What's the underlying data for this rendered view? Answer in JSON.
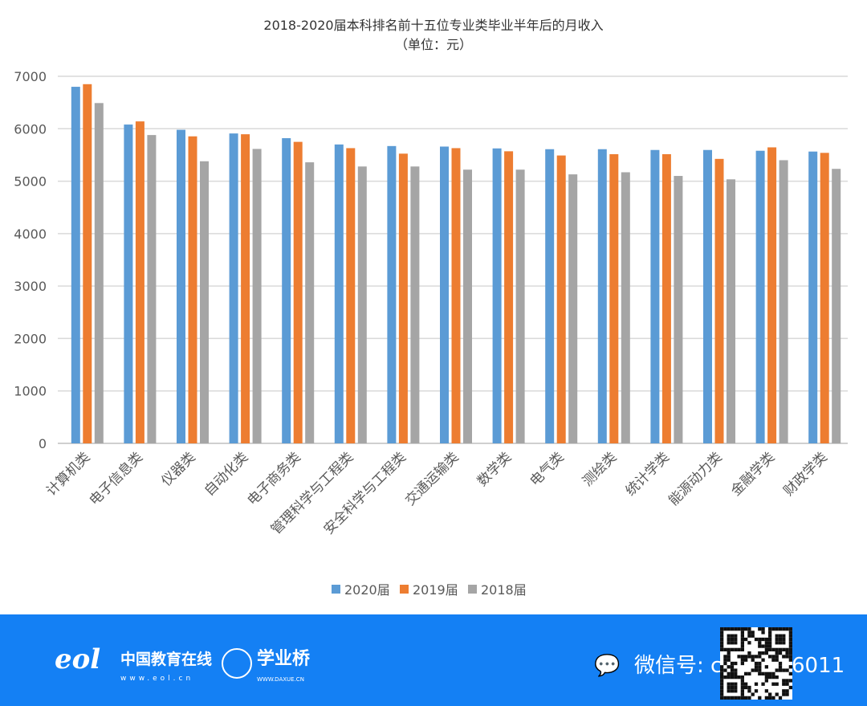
{
  "chart_data": {
    "type": "bar",
    "title": "2018-2020届本科排名前十五位专业类毕业半年后的月收入",
    "subtitle": "（单位：元）",
    "categories": [
      "计算机类",
      "电子信息类",
      "仪器类",
      "自动化类",
      "电子商务类",
      "管理科学与工程类",
      "安全科学与工程类",
      "交通运输类",
      "数学类",
      "电气类",
      "测绘类",
      "统计学类",
      "能源动力类",
      "金融学类",
      "财政学类"
    ],
    "series": [
      {
        "name": "2020届",
        "color": "#5b9bd5",
        "values": [
          6800,
          6080,
          5980,
          5910,
          5820,
          5700,
          5670,
          5660,
          5625,
          5610,
          5610,
          5595,
          5595,
          5580,
          5565
        ]
      },
      {
        "name": "2019届",
        "color": "#ed7d31",
        "values": [
          6850,
          6140,
          5855,
          5895,
          5750,
          5630,
          5525,
          5630,
          5570,
          5490,
          5515,
          5515,
          5425,
          5645,
          5540
        ]
      },
      {
        "name": "2018届",
        "color": "#a5a5a5",
        "values": [
          6490,
          5880,
          5380,
          5615,
          5360,
          5280,
          5280,
          5220,
          5220,
          5130,
          5170,
          5100,
          5035,
          5400,
          5235
        ]
      }
    ],
    "ylim": [
      0,
      7000
    ],
    "yticks": [
      0,
      1000,
      2000,
      3000,
      4000,
      5000,
      6000,
      7000
    ],
    "grid": true,
    "legend": "bottom"
  },
  "footer": {
    "eol_logo": "eol",
    "eol_name": "中国教育在线",
    "eol_url": "www.eol.cn",
    "xyq_name": "学业桥",
    "xyq_url": "WWW.DAXUE.CN",
    "wechat": "微信号: chenwu6011"
  }
}
